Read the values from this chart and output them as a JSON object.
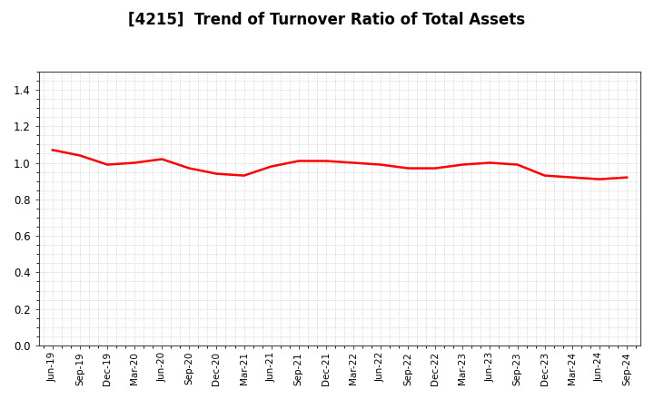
{
  "title": "[4215]  Trend of Turnover Ratio of Total Assets",
  "title_fontsize": 12,
  "line_color": "#FF0000",
  "line_width": 1.8,
  "background_color": "#FFFFFF",
  "grid_color": "#BBBBBB",
  "ylim": [
    0.0,
    1.5
  ],
  "yticks": [
    0.0,
    0.2,
    0.4,
    0.6,
    0.8,
    1.0,
    1.2,
    1.4
  ],
  "x_labels": [
    "Jun-19",
    "Sep-19",
    "Dec-19",
    "Mar-20",
    "Jun-20",
    "Sep-20",
    "Dec-20",
    "Mar-21",
    "Jun-21",
    "Sep-21",
    "Dec-21",
    "Mar-22",
    "Jun-22",
    "Sep-22",
    "Dec-22",
    "Mar-23",
    "Jun-23",
    "Sep-23",
    "Dec-23",
    "Mar-24",
    "Jun-24",
    "Sep-24"
  ],
  "values": [
    1.07,
    1.04,
    0.99,
    1.0,
    1.02,
    0.97,
    0.94,
    0.93,
    0.98,
    1.01,
    1.01,
    1.0,
    0.99,
    0.97,
    0.97,
    0.99,
    1.0,
    0.99,
    0.93,
    0.92,
    0.91,
    0.92
  ]
}
